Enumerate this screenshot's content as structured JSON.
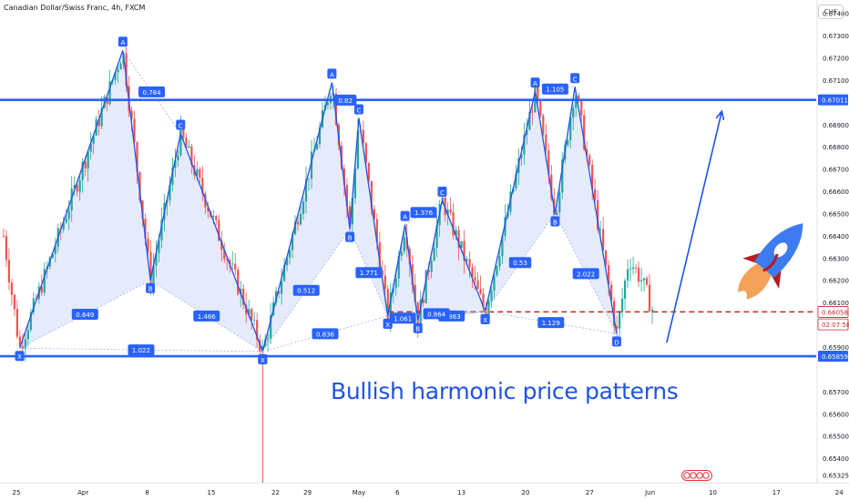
{
  "header": {
    "title": "Canadian Dollar/Swiss Franc, 4h, FXCM",
    "currency": "CHF"
  },
  "caption": "Bullish harmonic price patterns",
  "colors": {
    "accent": "#2962ff",
    "pattern_line": "#1e53e5",
    "pattern_fill": "#cfdaf7",
    "up_candle": "#26a69a",
    "down_candle": "#ef5350",
    "marker_fill": "#2962ff",
    "current_price_line": "#c62828",
    "rocket_body": "#3f7bf0",
    "rocket_fin": "#b71c1c",
    "rocket_flame": "#f4a259"
  },
  "chart_data": {
    "type": "candlestick",
    "title": "Canadian Dollar/Swiss Franc, 4h, FXCM",
    "ylim": [
      0.6529,
      0.6746
    ],
    "y_ticks": [
      "0.67400",
      "0.67300",
      "0.67200",
      "0.67100",
      "0.66900",
      "0.66800",
      "0.66700",
      "0.66600",
      "0.66500",
      "0.66400",
      "0.66300",
      "0.66200",
      "0.66100",
      "0.66000",
      "0.65900",
      "0.65700",
      "0.65600",
      "0.65500",
      "0.65400",
      "0.65325"
    ],
    "x_ticks": [
      "25",
      "Apr",
      "8",
      "15",
      "22",
      "29",
      "May",
      "6",
      "13",
      "20",
      "27",
      "Jun",
      "10",
      "17",
      "24"
    ],
    "price_labels": [
      {
        "value": 0.67011,
        "label": "0.67011",
        "kind": "level"
      },
      {
        "value": 0.66058,
        "label": "0.66058",
        "kind": "current"
      },
      {
        "value": 0.66002,
        "label": "02:07:58",
        "kind": "countdown"
      },
      {
        "value": 0.65859,
        "label": "0.65859",
        "kind": "level"
      }
    ],
    "horizontal_levels": [
      {
        "value": 0.67011,
        "style": "solid"
      },
      {
        "value": 0.65859,
        "style": "solid"
      },
      {
        "value": 0.66058,
        "style": "dashed"
      }
    ],
    "patterns": [
      {
        "name": "pattern-1",
        "points": [
          {
            "label": "X",
            "t": 0.5,
            "price": 0.65895
          },
          {
            "label": "A",
            "t": 16.6,
            "price": 0.67234
          },
          {
            "label": "B",
            "t": 20.9,
            "price": 0.662
          },
          {
            "label": "C",
            "t": 25.6,
            "price": 0.6686
          },
          {
            "label": "D",
            "t": 38.4,
            "price": 0.6588
          }
        ],
        "ratios": [
          "0.649",
          "0.784",
          "1.466",
          "1.022"
        ]
      },
      {
        "name": "pattern-2",
        "points": [
          {
            "label": "X",
            "t": 38.4,
            "price": 0.6588
          },
          {
            "label": "A",
            "t": 49.2,
            "price": 0.6709
          },
          {
            "label": "B",
            "t": 52.0,
            "price": 0.6643
          },
          {
            "label": "C",
            "t": 53.4,
            "price": 0.6693
          },
          {
            "label": "D",
            "t": 57.9,
            "price": 0.6604
          }
        ],
        "ratios": [
          "0.512",
          "0.82",
          "1.771",
          "0.836"
        ]
      },
      {
        "name": "pattern-3",
        "points": [
          {
            "label": "X",
            "t": 57.9,
            "price": 0.6604
          },
          {
            "label": "A",
            "t": 60.6,
            "price": 0.6645
          },
          {
            "label": "B",
            "t": 62.6,
            "price": 0.6602
          },
          {
            "label": "C",
            "t": 66.4,
            "price": 0.6656
          },
          {
            "label": "D",
            "t": 73.1,
            "price": 0.6606
          }
        ],
        "ratios": [
          "1.061",
          "1.376",
          "0.863",
          "0.864"
        ]
      },
      {
        "name": "pattern-4",
        "points": [
          {
            "label": "X",
            "t": 73.1,
            "price": 0.6606
          },
          {
            "label": "A",
            "t": 80.9,
            "price": 0.6705
          },
          {
            "label": "B",
            "t": 84.0,
            "price": 0.665
          },
          {
            "label": "C",
            "t": 87.1,
            "price": 0.6707
          },
          {
            "label": "D",
            "t": 93.6,
            "price": 0.6596
          }
        ],
        "ratios": [
          "0.53",
          "1.105",
          "2.022",
          "1.129"
        ]
      }
    ],
    "projection_arrow": {
      "from": {
        "t": 101.4,
        "price": 0.6592
      },
      "to": {
        "t": 110.0,
        "price": 0.6696
      }
    }
  }
}
